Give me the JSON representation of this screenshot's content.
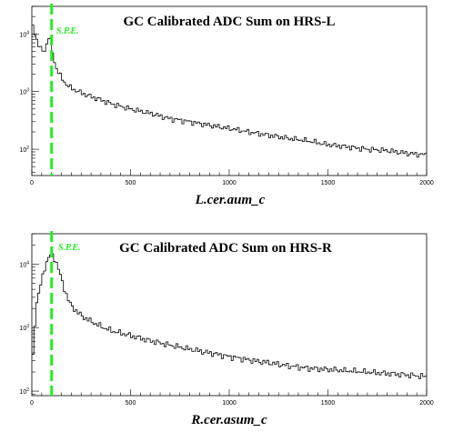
{
  "chart_data": [
    {
      "type": "histogram",
      "title": "GC Calibrated ADC Sum on HRS-L",
      "xlabel": "L.cer.aum_c",
      "ylabel": "",
      "xlim": [
        0,
        2000
      ],
      "ylim": [
        35,
        30000
      ],
      "yscale": "log",
      "grid": false,
      "x_ticks": [
        "0",
        "500",
        "1000",
        "1500",
        "2000"
      ],
      "y_ticks": [
        {
          "value": 100,
          "mantissa": "10",
          "exp": "2"
        },
        {
          "value": 1000,
          "mantissa": "10",
          "exp": "3"
        },
        {
          "value": 10000,
          "mantissa": "10",
          "exp": "4"
        }
      ],
      "marker": {
        "x": 100,
        "label": "S.P.E.",
        "color": "#22ee22"
      },
      "line_color": "#000000",
      "series": [
        {
          "bin_width": 10,
          "x": [
            0,
            10,
            20,
            30,
            40,
            50,
            60,
            70,
            80,
            90,
            100,
            110,
            120,
            130,
            140,
            150,
            160,
            170,
            180,
            190,
            200,
            250,
            300,
            350,
            400,
            500,
            600,
            700,
            800,
            900,
            1000,
            1100,
            1200,
            1300,
            1400,
            1500,
            1600,
            1700,
            1800,
            1900,
            1990
          ],
          "values": [
            16000,
            12000,
            9000,
            7000,
            5800,
            5200,
            4900,
            5600,
            8000,
            9500,
            6000,
            3800,
            2800,
            2300,
            2000,
            1750,
            1550,
            1400,
            1300,
            1200,
            1150,
            950,
            820,
            720,
            620,
            500,
            420,
            340,
            300,
            260,
            230,
            200,
            175,
            155,
            140,
            120,
            110,
            100,
            95,
            85,
            80
          ]
        }
      ]
    },
    {
      "type": "histogram",
      "title": "GC Calibrated ADC Sum on HRS-R",
      "xlabel": "R.cer.asum_c",
      "ylabel": "",
      "xlim": [
        0,
        2000
      ],
      "ylim": [
        85,
        30000
      ],
      "yscale": "log",
      "grid": false,
      "x_ticks": [
        "0",
        "500",
        "1000",
        "1500",
        "2000"
      ],
      "y_ticks": [
        {
          "value": 100,
          "mantissa": "10",
          "exp": "2"
        },
        {
          "value": 1000,
          "mantissa": "10",
          "exp": "3"
        },
        {
          "value": 10000,
          "mantissa": "10",
          "exp": "4"
        }
      ],
      "marker": {
        "x": 100,
        "label": "S.P.E.",
        "color": "#22ee22"
      },
      "line_color": "#000000",
      "series": [
        {
          "bin_width": 10,
          "x": [
            0,
            10,
            20,
            30,
            40,
            50,
            60,
            70,
            80,
            90,
            100,
            110,
            120,
            130,
            140,
            150,
            160,
            170,
            180,
            190,
            200,
            250,
            300,
            350,
            400,
            500,
            600,
            700,
            800,
            900,
            1000,
            1100,
            1200,
            1300,
            1400,
            1500,
            1600,
            1700,
            1800,
            1900,
            1990
          ],
          "values": [
            200,
            600,
            2200,
            2900,
            4000,
            5500,
            7500,
            10000,
            12000,
            13500,
            14000,
            13000,
            11500,
            9500,
            7500,
            5800,
            4600,
            3700,
            3000,
            2500,
            2200,
            1550,
            1250,
            1050,
            900,
            750,
            620,
            530,
            460,
            400,
            350,
            310,
            280,
            250,
            230,
            220,
            210,
            200,
            190,
            180,
            170
          ]
        }
      ]
    }
  ]
}
